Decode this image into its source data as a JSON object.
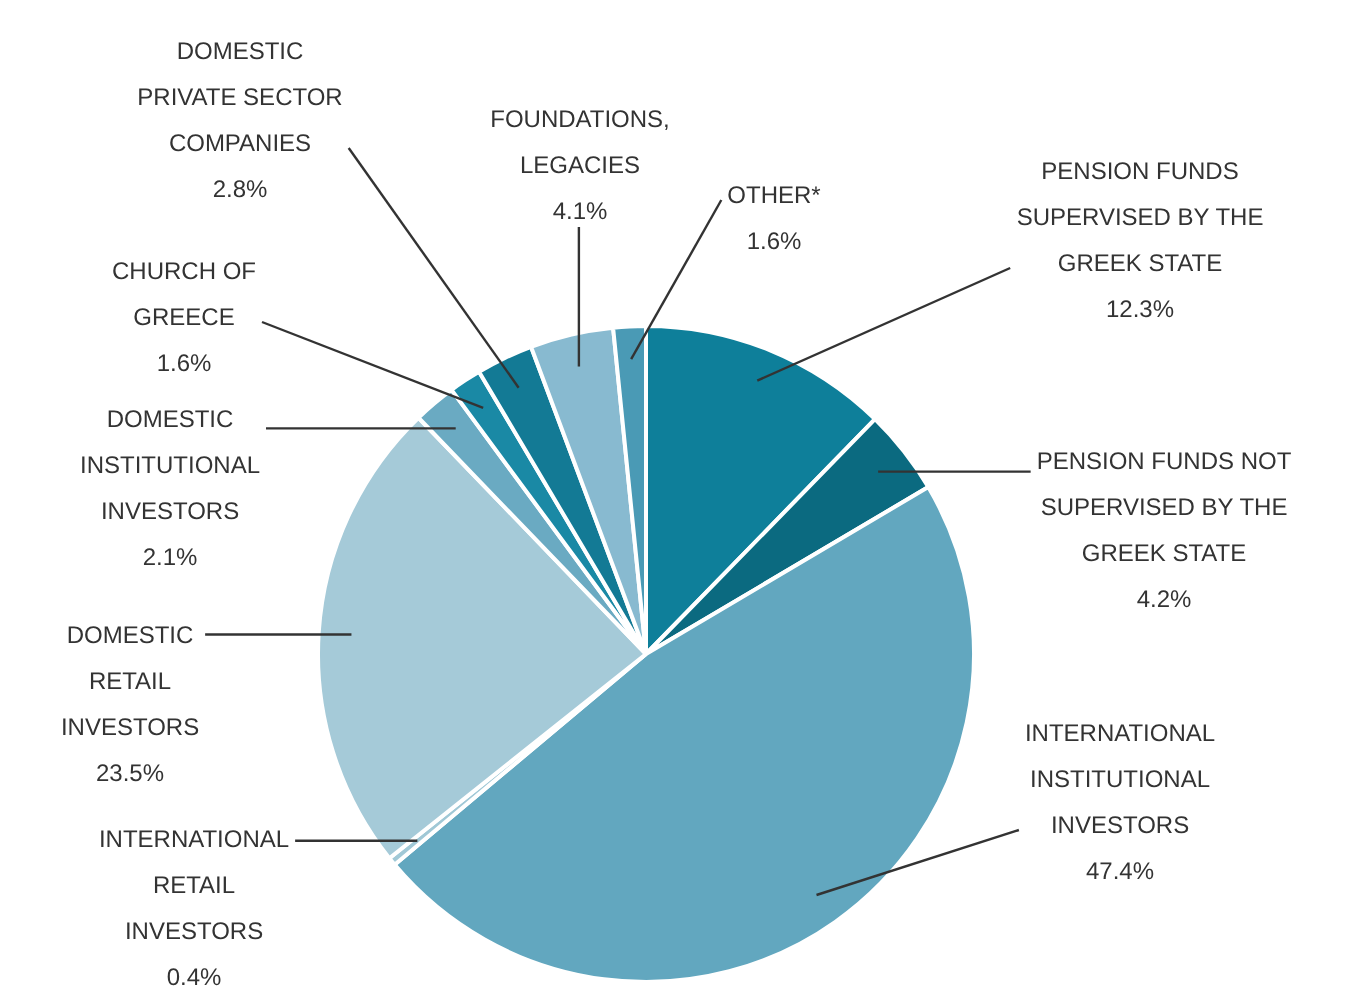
{
  "chart_data": {
    "type": "pie",
    "categories": [
      "PENSION FUNDS SUPERVISED BY THE GREEK STATE",
      "PENSION FUNDS NOT SUPERVISED BY THE GREEK STATE",
      "INTERNATIONAL INSTITUTIONAL INVESTORS",
      "INTERNATIONAL RETAIL INVESTORS",
      "DOMESTIC RETAIL INVESTORS",
      "DOMESTIC INSTITUTIONAL INVESTORS",
      "CHURCH OF GREECE",
      "DOMESTIC PRIVATE SECTOR COMPANIES",
      "FOUNDATIONS, LEGACIES",
      "OTHER*"
    ],
    "values": [
      12.3,
      4.2,
      47.4,
      0.4,
      23.5,
      2.1,
      1.6,
      2.8,
      4.1,
      1.6
    ],
    "value_labels": [
      "12.3%",
      "4.2%",
      "47.4%",
      "0.4%",
      "23.5%",
      "2.1%",
      "1.6%",
      "2.8%",
      "4.1%",
      "1.6%"
    ],
    "colors": [
      "#0e7f9a",
      "#0b6a80",
      "#62a7bf",
      "#a0c8d6",
      "#a5cad8",
      "#6aaac2",
      "#1a89a5",
      "#137a95",
      "#88bad0",
      "#4a9ab5"
    ]
  }
}
